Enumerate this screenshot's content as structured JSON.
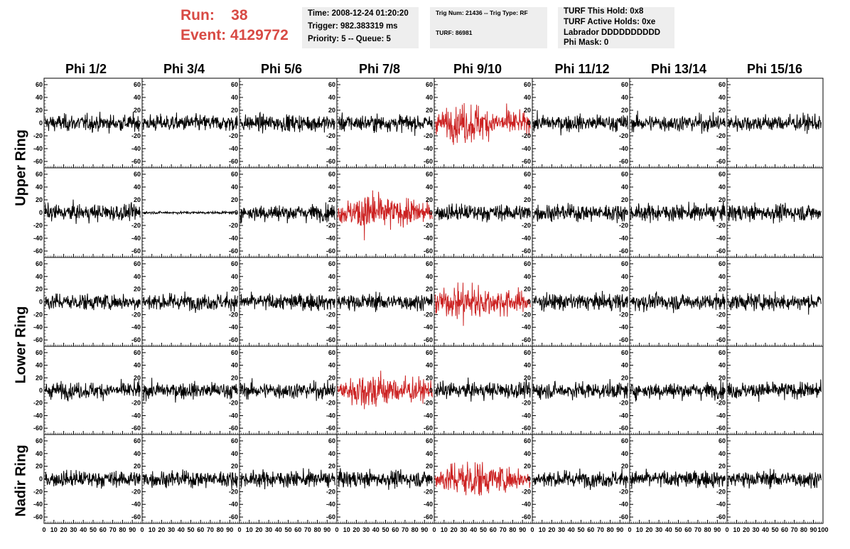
{
  "header": {
    "run_label": "Run:",
    "run_value": "38",
    "event_label": "Event:",
    "event_value": "4129772",
    "time_line": "Time: 2008-12-24 01:20:20",
    "trigger_line": "Trigger: 982.383319 ms",
    "priority_line": "Priority: 5 -- Queue: 5",
    "trig_line": "Trig Num: 21436 -- Trig Type: RF",
    "turf_line": "TURF: 86981",
    "turf_hold_line": "TURF This Hold: 0x8",
    "turf_active_line": "TURF Active Holds: 0xe",
    "labrador_line": "Labrador DDDDDDDDDD",
    "phi_mask_line": "Phi Mask: 0"
  },
  "columns": [
    "Phi 1/2",
    "Phi 3/4",
    "Phi 5/6",
    "Phi 7/8",
    "Phi 9/10",
    "Phi 11/12",
    "Phi 13/14",
    "Phi 15/16"
  ],
  "ring_labels": [
    "Upper Ring",
    "Lower Ring",
    "Nadir Ring"
  ],
  "colors": {
    "normal_trace": "#000000",
    "triggered_trace": "#cc2222",
    "run_text": "#d84a44",
    "info_box": "#eeeeee"
  },
  "chart_data": {
    "type": "line",
    "rows": 5,
    "cols": 8,
    "xlim": [
      0,
      100
    ],
    "ylim": [
      -70,
      70
    ],
    "x_ticks": [
      0,
      10,
      20,
      30,
      40,
      50,
      60,
      70,
      80,
      90
    ],
    "x_ticks_last": [
      0,
      10,
      20,
      30,
      40,
      50,
      60,
      70,
      80,
      90,
      100
    ],
    "y_ticks": [
      -60,
      -40,
      -20,
      0,
      20,
      40,
      60
    ],
    "y_tick_labels": [
      "-60",
      "-40",
      "-20",
      "0",
      "20",
      "40",
      "60"
    ],
    "x_tick_labels": [
      "0",
      "10",
      "20",
      "30",
      "40",
      "50",
      "60",
      "70",
      "80",
      "90"
    ],
    "x_tick_labels_last": [
      "0",
      "10",
      "20",
      "30",
      "40",
      "50",
      "60",
      "70",
      "80",
      "90",
      "100"
    ],
    "triggered_cells": [
      [
        0,
        4
      ],
      [
        1,
        3
      ],
      [
        2,
        4
      ],
      [
        3,
        3
      ],
      [
        4,
        4
      ]
    ],
    "quiet_cells": [
      [
        1,
        1
      ]
    ],
    "approx_noise_rms": 10,
    "approx_triggered_rms": 18
  }
}
